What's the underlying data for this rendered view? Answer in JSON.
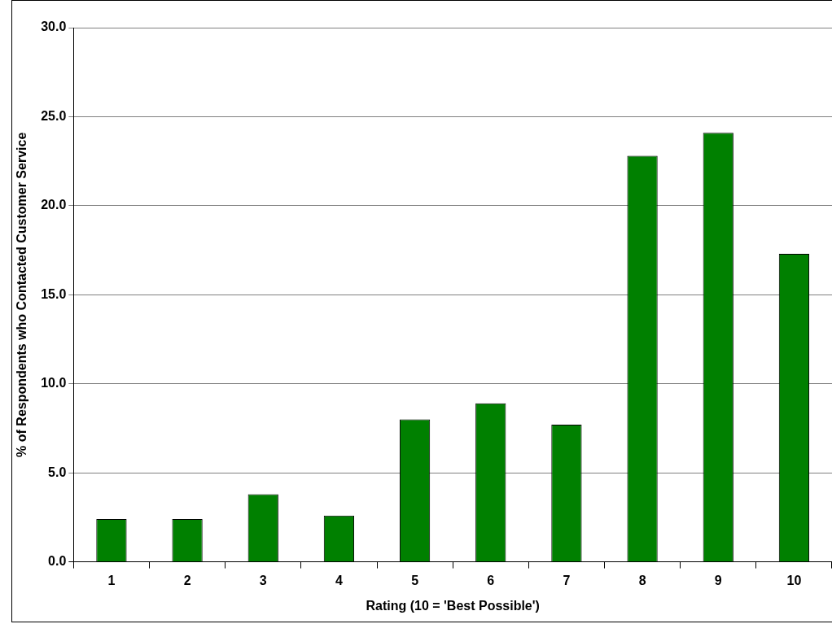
{
  "chart_data": {
    "type": "bar",
    "xlabel": "Rating (10 = 'Best Possible')",
    "ylabel": "% of Respondents who Contacted Customer Service",
    "categories": [
      "1",
      "2",
      "3",
      "4",
      "5",
      "6",
      "7",
      "8",
      "9",
      "10"
    ],
    "values": [
      2.4,
      2.4,
      3.8,
      2.6,
      8.0,
      8.9,
      7.7,
      22.8,
      24.1,
      17.3
    ],
    "color": "#008000",
    "ylim": [
      0,
      30
    ],
    "yticks": [
      {
        "value": 0,
        "label": "0.0"
      },
      {
        "value": 5,
        "label": "5.0"
      },
      {
        "value": 10,
        "label": "10.0"
      },
      {
        "value": 15,
        "label": "15.0"
      },
      {
        "value": 20,
        "label": "20.0"
      },
      {
        "value": 25,
        "label": "25.0"
      },
      {
        "value": 30,
        "label": "30.0"
      }
    ],
    "grid": "y"
  }
}
